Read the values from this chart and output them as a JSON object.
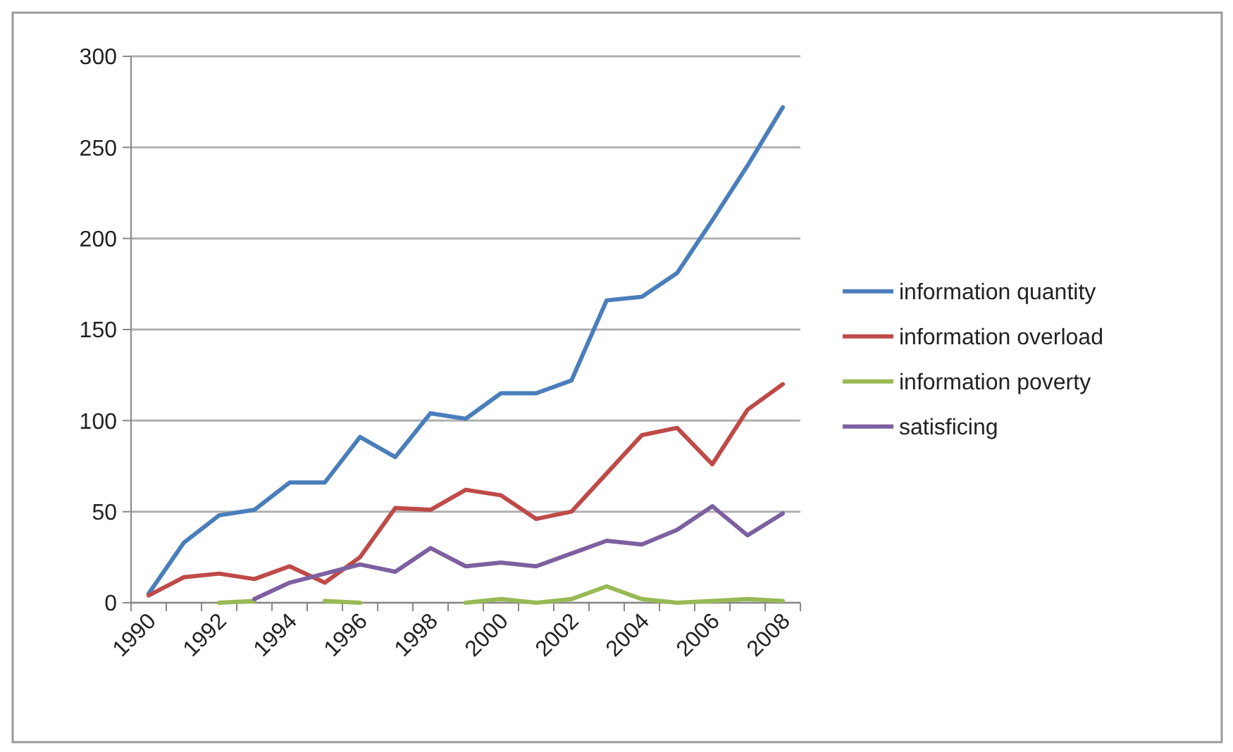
{
  "chart_data": {
    "type": "line",
    "categories": [
      "1990",
      null,
      "1992",
      null,
      "1994",
      null,
      "1996",
      null,
      "1998",
      null,
      "2000",
      null,
      "2002",
      null,
      "2004",
      null,
      "2006",
      null,
      "2008"
    ],
    "series": [
      {
        "name": "information quantity",
        "color": "#4a7ebb",
        "values": [
          5,
          33,
          48,
          51,
          66,
          66,
          91,
          80,
          104,
          101,
          115,
          115,
          122,
          166,
          168,
          181,
          210,
          240,
          272
        ]
      },
      {
        "name": "information overload",
        "color": "#be4b48",
        "values": [
          4,
          14,
          16,
          13,
          20,
          11,
          25,
          52,
          51,
          62,
          59,
          46,
          50,
          71,
          92,
          96,
          76,
          106,
          120
        ]
      },
      {
        "name": "information poverty",
        "color": "#98b954",
        "values": [
          null,
          null,
          0,
          1,
          null,
          1,
          0,
          null,
          null,
          0,
          2,
          0,
          2,
          9,
          2,
          0,
          1,
          2,
          1
        ]
      },
      {
        "name": "satisficing",
        "color": "#7d60a0",
        "values": [
          null,
          null,
          null,
          2,
          11,
          16,
          21,
          17,
          30,
          20,
          22,
          20,
          27,
          34,
          32,
          40,
          53,
          37,
          49
        ]
      }
    ],
    "ylim": [
      0,
      300
    ],
    "yticks": [
      0,
      50,
      100,
      150,
      200,
      250,
      300
    ],
    "grid": "y",
    "legend": "right",
    "marker": "none",
    "line_style": "solid"
  }
}
